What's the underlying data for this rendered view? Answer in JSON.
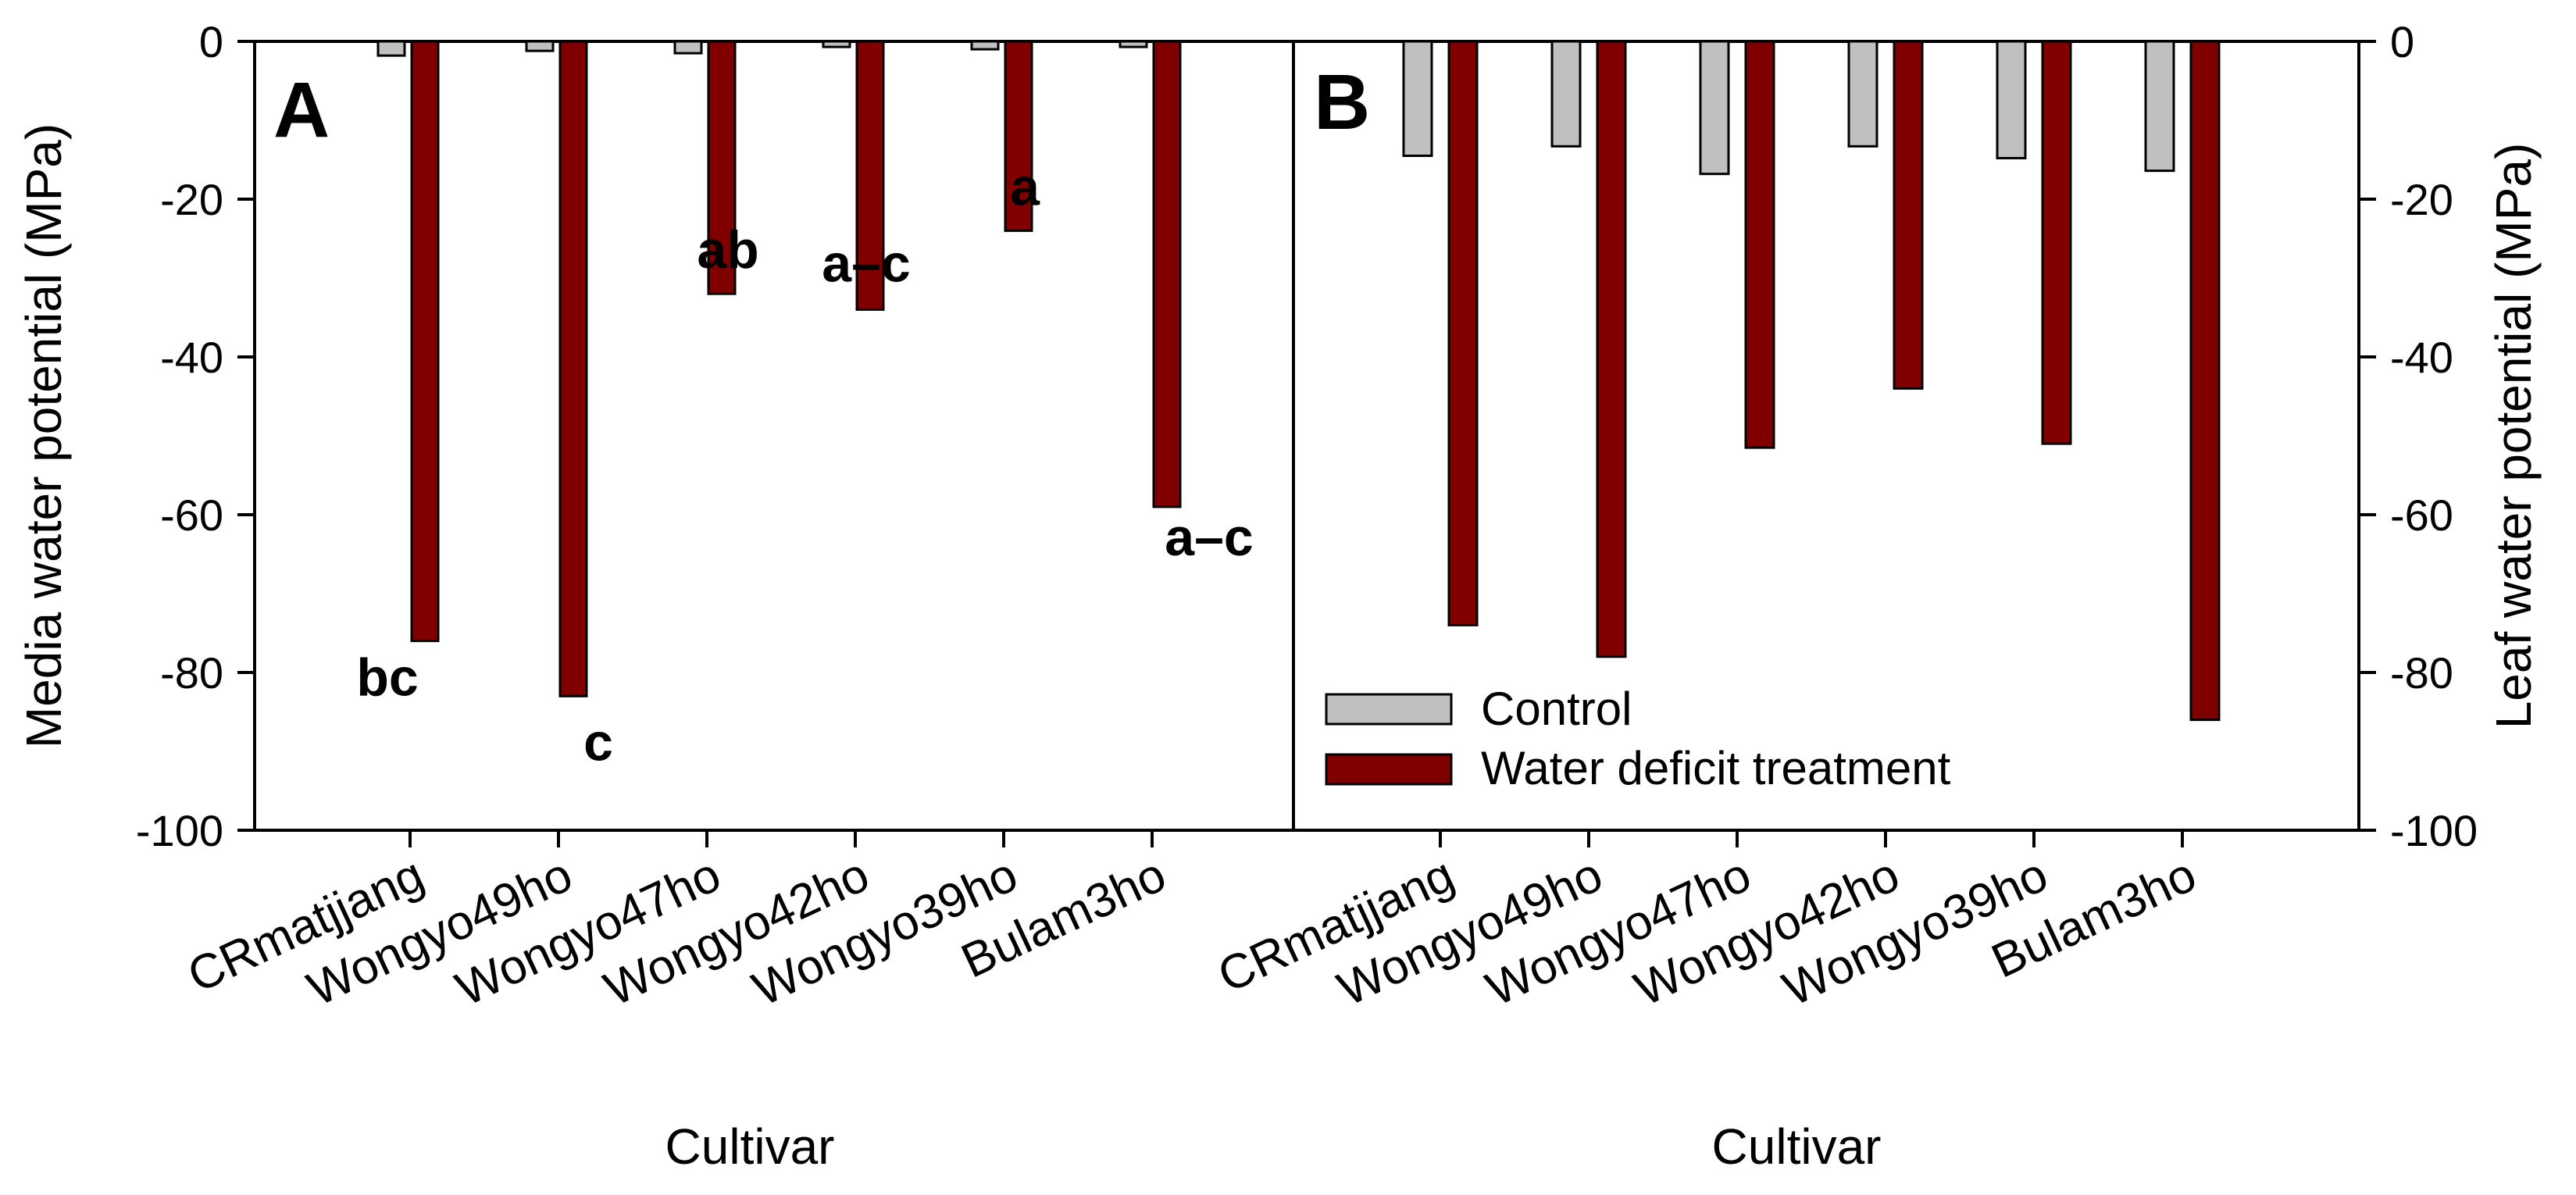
{
  "chart_data": [
    {
      "panel": "A",
      "type": "bar",
      "title": "",
      "xlabel": "Cultivar",
      "ylabel": "Media water potential (MPa)",
      "ylim": [
        -100,
        0
      ],
      "yticks": [
        0,
        -20,
        -40,
        -60,
        -80,
        -100
      ],
      "yaxis_side": "left",
      "grid": false,
      "categories": [
        "CRmatjjang",
        "Wongyo49ho",
        "Wongyo47ho",
        "Wongyo42ho",
        "Wongyo39ho",
        "Bulam3ho"
      ],
      "series": [
        {
          "name": "Control",
          "color": "#c0c0c0",
          "values": [
            -1.8,
            -1.2,
            -1.5,
            -0.7,
            -1.0,
            -0.7
          ]
        },
        {
          "name": "Water deficit treatment",
          "color": "#800000",
          "values": [
            -76,
            -83,
            -32,
            -34,
            -24,
            -59
          ]
        }
      ],
      "annotations": [
        "bc",
        "c",
        "ab",
        "a–c",
        "a",
        "a–c"
      ]
    },
    {
      "panel": "B",
      "type": "bar",
      "title": "",
      "xlabel": "Cultivar",
      "ylabel": "Leaf water potential (MPa)",
      "ylim": [
        -100,
        0
      ],
      "yticks": [
        0,
        -20,
        -40,
        -60,
        -80,
        -100
      ],
      "yaxis_side": "right",
      "grid": false,
      "legend_position": "bottom-left",
      "categories": [
        "CRmatjjang",
        "Wongyo49ho",
        "Wongyo47ho",
        "Wongyo42ho",
        "Wongyo39ho",
        "Bulam3ho"
      ],
      "series": [
        {
          "name": "Control",
          "color": "#c0c0c0",
          "values": [
            -14.5,
            -13.3,
            -16.8,
            -13.3,
            -14.8,
            -16.4
          ]
        },
        {
          "name": "Water deficit treatment",
          "color": "#800000",
          "values": [
            -74,
            -78,
            -51.5,
            -44,
            -51,
            -86
          ]
        }
      ]
    }
  ]
}
